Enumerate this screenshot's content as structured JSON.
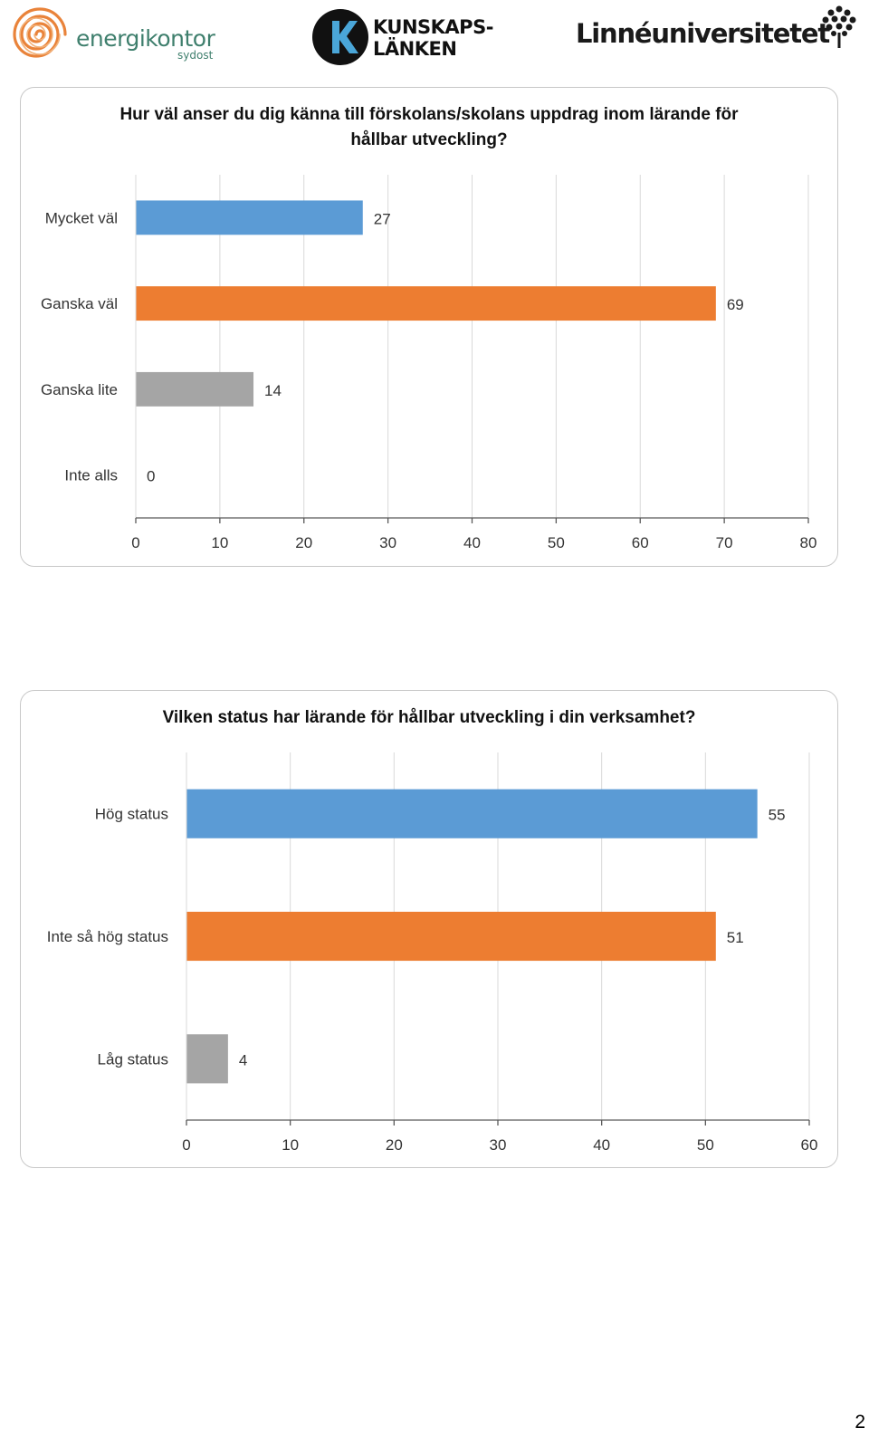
{
  "logos": {
    "energikontor": {
      "name": "energikontor",
      "sub": "sydost",
      "icon": "spiral-logo-icon"
    },
    "kunskapslanken": {
      "line1": "KUNSKAPS-",
      "line2": "LÄNKEN",
      "icon": "k-circle-logo-icon"
    },
    "linneuniversitetet": {
      "name": "Linnéuniversitetet",
      "icon": "tree-logo-icon"
    }
  },
  "page_number": "2",
  "colors": {
    "blue": "#5b9bd5",
    "orange": "#ed7d31",
    "gray": "#a5a5a5",
    "grid": "#d9d9d9",
    "axis": "#595959"
  },
  "chart_data": [
    {
      "type": "bar",
      "orientation": "horizontal",
      "title": "Hur väl anser du dig känna till förskolans/skolans uppdrag inom lärande för hållbar utveckling?",
      "categories": [
        "Mycket väl",
        "Ganska väl",
        "Ganska lite",
        "Inte alls"
      ],
      "values": [
        27,
        69,
        14,
        0
      ],
      "bar_colors": [
        "#5b9bd5",
        "#ed7d31",
        "#a5a5a5",
        "#ffc000"
      ],
      "xlim": [
        0,
        80
      ],
      "xticks": [
        0,
        10,
        20,
        30,
        40,
        50,
        60,
        70,
        80
      ],
      "grid": true,
      "data_labels": true
    },
    {
      "type": "bar",
      "orientation": "horizontal",
      "title": "Vilken status har lärande för hållbar utveckling i din verksamhet?",
      "categories": [
        "Hög status",
        "Inte så hög status",
        "Låg status"
      ],
      "values": [
        55,
        51,
        4
      ],
      "bar_colors": [
        "#5b9bd5",
        "#ed7d31",
        "#a5a5a5"
      ],
      "xlim": [
        0,
        60
      ],
      "xticks": [
        0,
        10,
        20,
        30,
        40,
        50,
        60
      ],
      "grid": true,
      "data_labels": true
    }
  ]
}
